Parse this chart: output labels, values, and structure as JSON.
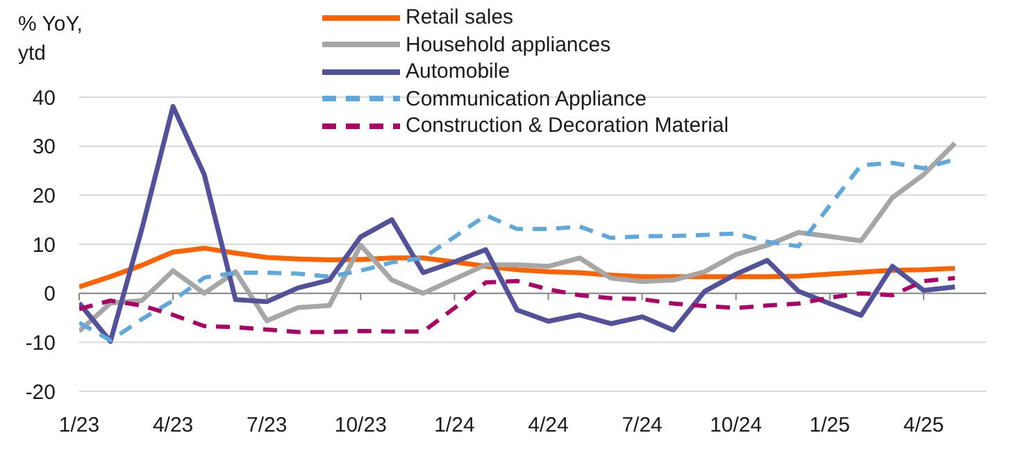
{
  "chart_data": {
    "type": "line",
    "ylabel": "% YoY, ytd",
    "x": [
      "2023-01",
      "2023-02",
      "2023-03",
      "2023-04",
      "2023-05",
      "2023-06",
      "2023-07",
      "2023-08",
      "2023-09",
      "2023-10",
      "2023-11",
      "2023-12",
      "2024-01",
      "2024-02",
      "2024-03",
      "2024-04",
      "2024-05",
      "2024-06",
      "2024-07",
      "2024-08",
      "2024-09",
      "2024-10",
      "2024-11",
      "2024-12",
      "2025-01",
      "2025-02",
      "2025-03",
      "2025-04",
      "2025-05"
    ],
    "series": [
      {
        "name": "Retail sales",
        "color": "#ff6200",
        "line_style": "solid",
        "values": [
          1.3,
          3.4,
          5.7,
          8.4,
          9.2,
          8.2,
          7.3,
          7.0,
          6.8,
          6.9,
          7.2,
          7.2,
          6.4,
          5.5,
          4.8,
          4.4,
          4.2,
          3.7,
          3.4,
          3.4,
          3.4,
          3.4,
          3.4,
          3.5,
          3.9,
          4.3,
          4.7,
          4.8,
          5.1
        ]
      },
      {
        "name": "Household appliances",
        "color": "#a6a6a6",
        "line_style": "solid",
        "values": [
          -7.7,
          -2.0,
          -1.5,
          4.6,
          0.0,
          4.4,
          -5.6,
          -2.9,
          -2.5,
          9.8,
          2.7,
          0.0,
          2.9,
          5.8,
          5.8,
          5.5,
          7.2,
          3.1,
          2.4,
          2.7,
          4.4,
          7.9,
          9.8,
          12.4,
          11.6,
          10.7,
          19.5,
          24.2,
          30.6
        ]
      },
      {
        "name": "Automobile",
        "color": "#525199",
        "line_style": "solid",
        "values": [
          -2.0,
          -9.8,
          13.0,
          38.1,
          24.2,
          -1.3,
          -1.7,
          1.1,
          2.7,
          11.5,
          15.0,
          4.2,
          6.4,
          8.9,
          -3.4,
          -5.7,
          -4.4,
          -6.2,
          -4.8,
          -7.5,
          0.4,
          3.9,
          6.7,
          0.4,
          -2.1,
          -4.5,
          5.5,
          0.6,
          1.3
        ]
      },
      {
        "name": "Communication Appliance",
        "color": "#60a8dc",
        "line_style": "dashed",
        "values": [
          -6.0,
          -9.6,
          -5.3,
          -1.5,
          3.2,
          4.2,
          4.2,
          4.0,
          3.4,
          4.6,
          6.3,
          7.2,
          11.5,
          15.9,
          13.1,
          13.1,
          13.6,
          11.3,
          11.6,
          11.7,
          11.9,
          12.2,
          10.5,
          9.6,
          17.9,
          26.1,
          26.6,
          25.5,
          27.3
        ]
      },
      {
        "name": "Construction & Decoration Material",
        "color": "#ab0066",
        "line_style": "dashed",
        "values": [
          -3.2,
          -1.5,
          -2.5,
          -4.4,
          -6.7,
          -6.9,
          -7.4,
          -7.9,
          -7.9,
          -7.7,
          -7.8,
          -7.8,
          -3.0,
          2.2,
          2.5,
          0.8,
          -0.4,
          -1.0,
          -1.2,
          -2.1,
          -2.6,
          -3.0,
          -2.5,
          -2.1,
          -0.9,
          0.0,
          -0.4,
          2.5,
          3.1
        ]
      }
    ],
    "xlim": [
      "2023-01",
      "2025-06"
    ],
    "xticks": [
      {
        "value": "2023-01",
        "label": "1/23"
      },
      {
        "value": "2023-04",
        "label": "4/23"
      },
      {
        "value": "2023-07",
        "label": "7/23"
      },
      {
        "value": "2023-10",
        "label": "10/23"
      },
      {
        "value": "2024-01",
        "label": "1/24"
      },
      {
        "value": "2024-04",
        "label": "4/24"
      },
      {
        "value": "2024-07",
        "label": "7/24"
      },
      {
        "value": "2024-10",
        "label": "10/24"
      },
      {
        "value": "2025-01",
        "label": "1/25"
      },
      {
        "value": "2025-04",
        "label": "4/25"
      }
    ],
    "ylim": [
      -20,
      40
    ],
    "yticks": [
      -20,
      -10,
      0,
      10,
      20,
      30,
      40
    ],
    "grid": "y",
    "legend": "top",
    "marker": "none"
  }
}
